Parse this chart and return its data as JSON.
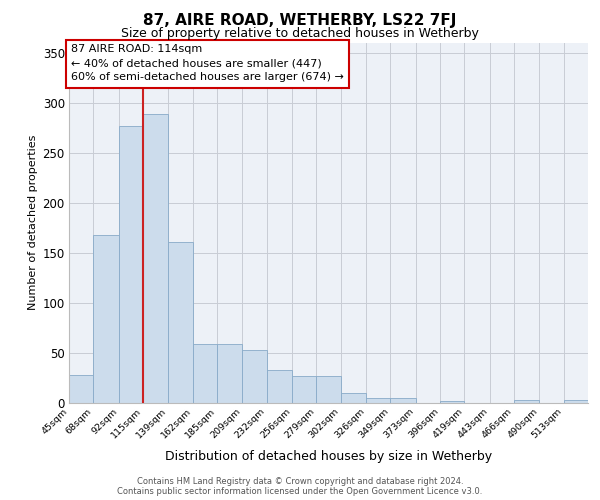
{
  "title": "87, AIRE ROAD, WETHERBY, LS22 7FJ",
  "subtitle": "Size of property relative to detached houses in Wetherby",
  "xlabel": "Distribution of detached houses by size in Wetherby",
  "ylabel": "Number of detached properties",
  "bar_color": "#ccdcec",
  "bar_edge_color": "#88aac8",
  "bg_color": "#edf1f7",
  "grid_color": "#c8ccd4",
  "annotation_text_line1": "87 AIRE ROAD: 114sqm",
  "annotation_text_line2": "← 40% of detached houses are smaller (447)",
  "annotation_text_line3": "60% of semi-detached houses are larger (674) →",
  "bin_labels": [
    "45sqm",
    "68sqm",
    "92sqm",
    "115sqm",
    "139sqm",
    "162sqm",
    "185sqm",
    "209sqm",
    "232sqm",
    "256sqm",
    "279sqm",
    "302sqm",
    "326sqm",
    "349sqm",
    "373sqm",
    "396sqm",
    "419sqm",
    "443sqm",
    "466sqm",
    "490sqm",
    "513sqm"
  ],
  "bin_edges": [
    45,
    68,
    92,
    115,
    139,
    162,
    185,
    209,
    232,
    256,
    279,
    302,
    326,
    349,
    373,
    396,
    419,
    443,
    466,
    490,
    513
  ],
  "bar_heights": [
    28,
    168,
    277,
    289,
    161,
    59,
    59,
    53,
    33,
    27,
    27,
    10,
    5,
    5,
    0,
    2,
    0,
    0,
    3,
    0,
    3
  ],
  "vline_x": 115,
  "ylim": [
    0,
    360
  ],
  "yticks": [
    0,
    50,
    100,
    150,
    200,
    250,
    300,
    350
  ],
  "footer_line1": "Contains HM Land Registry data © Crown copyright and database right 2024.",
  "footer_line2": "Contains public sector information licensed under the Open Government Licence v3.0."
}
